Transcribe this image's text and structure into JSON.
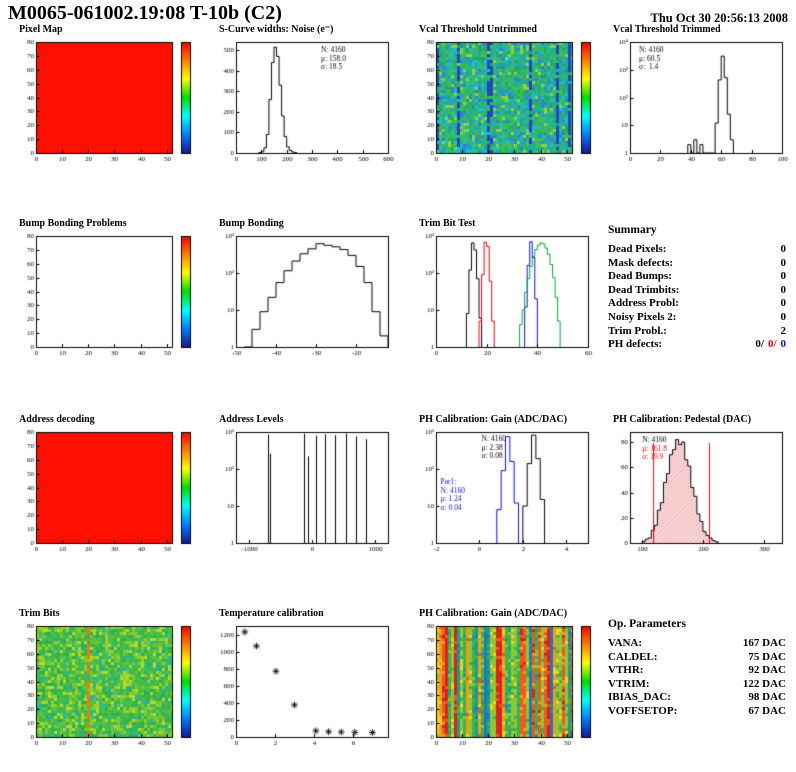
{
  "header": {
    "title": "M0065-061002.19:08 T-10b (C2)",
    "datetime": "Thu Oct 30 20:56:13 2008"
  },
  "colorbar_colors": [
    "#ff0000",
    "#ff8000",
    "#ffff00",
    "#00dc00",
    "#00ffff",
    "#0080ff",
    "#181890"
  ],
  "chart_data": [
    {
      "id": "pixel-map",
      "title": "Pixel Map",
      "type": "heatmap",
      "style": "solid",
      "fill_color": "#ff0f00",
      "colorbar": true,
      "x_range": [
        0,
        52
      ],
      "x_ticks": [
        0,
        10,
        20,
        30,
        40,
        50
      ],
      "y_range": [
        0,
        80
      ],
      "y_ticks": [
        0,
        10,
        20,
        30,
        40,
        50,
        60,
        70,
        80
      ]
    },
    {
      "id": "scurve-noise",
      "title": "S-Curve widths: Noise (e⁻)",
      "type": "hist",
      "y_type": "lin",
      "x_range": [
        0,
        600
      ],
      "x_ticks": [
        0,
        100,
        200,
        300,
        400,
        500,
        600
      ],
      "y_range": [
        0,
        540
      ],
      "y_ticks": [
        0,
        100,
        200,
        300,
        400,
        500
      ],
      "series": [
        {
          "color": "#000000",
          "x0": 90,
          "bin_width": 10,
          "counts": [
            2,
            6,
            25,
            90,
            260,
            440,
            515,
            470,
            330,
            180,
            80,
            30,
            12,
            5,
            2
          ]
        }
      ],
      "stats": [
        {
          "x": 0.56,
          "y": 0.04,
          "lines": [
            {
              "text": "N: 4160",
              "color": "#000000"
            },
            {
              "text": "μ: 158.0",
              "color": "#000000"
            },
            {
              "text": "σ: 18.5",
              "color": "#000000"
            }
          ]
        }
      ]
    },
    {
      "id": "vcal-threshold-untrimmed",
      "title": "Vcal Threshold Untrimmed",
      "type": "heatmap",
      "style": "noise",
      "seed": 7,
      "streak_prob": 0.09,
      "streak_color": "#2048c0",
      "colorbar": true,
      "palette": [
        "#2fb463",
        "#29ad71",
        "#1fae8e",
        "#36bd55",
        "#20b4a6",
        "#27a0c8",
        "#3fc04c",
        "#2b86d0",
        "#8ed042",
        "#1bbdd6",
        "#27ab5c",
        "#33b878"
      ],
      "x_range": [
        0,
        52
      ],
      "x_ticks": [
        0,
        10,
        20,
        30,
        40,
        50
      ],
      "y_range": [
        0,
        80
      ],
      "y_ticks": [
        0,
        10,
        20,
        30,
        40,
        50,
        60,
        70,
        80
      ]
    },
    {
      "id": "vcal-threshold-trimmed",
      "title": "Vcal Threshold Trimmed",
      "type": "hist",
      "y_type": "log",
      "y_decades": 4,
      "y_labels": [
        "1",
        "10",
        "10²",
        "10³",
        "10⁴"
      ],
      "x_range": [
        0,
        100
      ],
      "x_ticks": [
        0,
        20,
        40,
        60,
        80,
        100
      ],
      "series": [
        {
          "color": "#000000",
          "x0": 38,
          "bin_width": 2,
          "counts": [
            2,
            0,
            3,
            0,
            2,
            0,
            0,
            0,
            0,
            12,
            430,
            3100,
            520,
            25,
            3
          ]
        }
      ],
      "stats": [
        {
          "x": 0.06,
          "y": 0.04,
          "lines": [
            {
              "text": "N: 4160",
              "color": "#000000"
            },
            {
              "text": "μ: 60.5",
              "color": "#000000"
            },
            {
              "text": "σ:  1.4",
              "color": "#000000"
            }
          ]
        }
      ]
    },
    {
      "id": "bump-bonding-problems",
      "title": "Bump Bonding Problems",
      "type": "heatmap",
      "style": "empty",
      "colorbar": true,
      "x_range": [
        0,
        52
      ],
      "x_ticks": [
        0,
        10,
        20,
        30,
        40,
        50
      ],
      "y_range": [
        0,
        80
      ],
      "y_ticks": [
        0,
        10,
        20,
        30,
        40,
        50,
        60,
        70,
        80
      ]
    },
    {
      "id": "bump-bonding",
      "title": "Bump Bonding",
      "type": "hist",
      "y_type": "log",
      "y_decades": 3,
      "y_labels": [
        "1",
        "10",
        "10²",
        "10³"
      ],
      "x_range": [
        -50,
        -12
      ],
      "x_ticks": [
        -50,
        -40,
        -30,
        -20
      ],
      "series": [
        {
          "color": "#000000",
          "x0": -48,
          "bin_width": 2,
          "counts": [
            1,
            3,
            9,
            22,
            55,
            115,
            210,
            330,
            450,
            620,
            560,
            510,
            430,
            300,
            150,
            55,
            9,
            2
          ]
        }
      ]
    },
    {
      "id": "trim-bit-test",
      "title": "Trim Bit Test",
      "type": "hist",
      "y_type": "log",
      "y_decades": 3,
      "y_labels": [
        "1",
        "10",
        "10²",
        "10³"
      ],
      "x_range": [
        0,
        60
      ],
      "x_ticks": [
        0,
        20,
        40,
        60
      ],
      "series": [
        {
          "color": "#000000",
          "x0": 12,
          "bin_width": 1,
          "counts": [
            8,
            120,
            650,
            420,
            70,
            6
          ]
        },
        {
          "color": "#e8000d",
          "x0": 17,
          "bin_width": 1,
          "counts": [
            5,
            90,
            680,
            520,
            60,
            5
          ]
        },
        {
          "color": "#1010d8",
          "x0": 35,
          "bin_width": 1,
          "counts": [
            12,
            160,
            700,
            260,
            20
          ]
        },
        {
          "color": "#00a838",
          "x0": 33,
          "bin_width": 1,
          "counts": [
            4,
            10,
            30,
            70,
            150,
            280,
            430,
            560,
            640,
            610,
            470,
            320,
            170,
            75,
            22,
            5
          ]
        }
      ]
    },
    {
      "id": "address-decoding",
      "title": "Address decoding",
      "type": "heatmap",
      "style": "solid",
      "fill_color": "#ff0f00",
      "colorbar": true,
      "x_range": [
        0,
        52
      ],
      "x_ticks": [
        0,
        10,
        20,
        30,
        40,
        50
      ],
      "y_range": [
        0,
        80
      ],
      "y_ticks": [
        0,
        10,
        20,
        30,
        40,
        50,
        60,
        70,
        80
      ]
    },
    {
      "id": "address-levels",
      "title": "Address Levels",
      "type": "spikes",
      "y_type": "log",
      "y_decades": 3,
      "y_labels": [
        "1",
        "10",
        "10²",
        "10³"
      ],
      "x_range": [
        -1200,
        1200
      ],
      "x_ticks": [
        -1000,
        0,
        1000
      ],
      "spikes": [
        [
          -700,
          850
        ],
        [
          -660,
          260
        ],
        [
          -120,
          900
        ],
        [
          -70,
          220
        ],
        [
          60,
          800
        ],
        [
          210,
          870
        ],
        [
          370,
          820
        ],
        [
          530,
          900
        ],
        [
          690,
          760
        ],
        [
          850,
          640
        ]
      ]
    },
    {
      "id": "ph-calibration-gain-hist",
      "title": "PH Calibration: Gain (ADC/DAC)",
      "type": "hist",
      "y_type": "log",
      "y_decades": 3,
      "y_labels": [
        "1",
        "10",
        "10²",
        "10³"
      ],
      "x_range": [
        -2,
        5
      ],
      "x_ticks": [
        -2,
        0,
        2,
        4
      ],
      "series": [
        {
          "color": "#1010d8",
          "x0": 0.8,
          "bin_width": 0.2,
          "counts": [
            8,
            90,
            750,
            160,
            12
          ]
        },
        {
          "color": "#000000",
          "x0": 2.0,
          "bin_width": 0.2,
          "counts": [
            10,
            140,
            820,
            190,
            15
          ]
        }
      ],
      "stats": [
        {
          "x": 0.3,
          "y": 0.03,
          "lines": [
            {
              "text": "N: 4160",
              "color": "#000000"
            },
            {
              "text": "μ: 2.38",
              "color": "#000000"
            },
            {
              "text": "σ: 0.08",
              "color": "#000000"
            }
          ]
        },
        {
          "x": 0.03,
          "y": 0.42,
          "lines": [
            {
              "text": "Par1:",
              "color": "#1010d8"
            },
            {
              "text": "N: 4160",
              "color": "#1010d8"
            },
            {
              "text": "μ: 1.24",
              "color": "#1010d8"
            },
            {
              "text": "σ: 0.04",
              "color": "#1010d8"
            }
          ]
        }
      ]
    },
    {
      "id": "ph-calibration-pedestal",
      "title": "PH Calibration: Pedestal (DAC)",
      "type": "hist",
      "y_type": "lin",
      "x_range": [
        80,
        330
      ],
      "x_ticks": [
        100,
        200,
        300
      ],
      "y_range": [
        0,
        88
      ],
      "y_ticks": [
        0,
        20,
        40,
        60,
        80
      ],
      "series": [
        {
          "color": "#000000",
          "fill": "hatch-red",
          "x0": 100,
          "bin_width": 5,
          "counts": [
            1,
            3,
            4,
            10,
            14,
            26,
            32,
            48,
            55,
            70,
            74,
            82,
            78,
            80,
            66,
            61,
            44,
            37,
            23,
            17,
            9,
            6,
            4,
            2,
            1
          ]
        }
      ],
      "cut_lines": {
        "color": "#e8000d",
        "x": [
          118,
          210
        ]
      },
      "stats": [
        {
          "x": 0.08,
          "y": 0.04,
          "lines": [
            {
              "text": "N: 4160",
              "color": "#000000"
            },
            {
              "text": "μ: 161.8",
              "color": "#e8000d"
            },
            {
              "text": "σ: 19.9",
              "color": "#e8000d"
            }
          ]
        }
      ]
    },
    {
      "id": "trim-bits-map",
      "title": "Trim Bits",
      "type": "heatmap",
      "style": "noise",
      "seed": 21,
      "streak_prob": 0.04,
      "streak_color": "#e87818",
      "colorbar": true,
      "palette": [
        "#3cb44a",
        "#49be3e",
        "#62c437",
        "#7cc832",
        "#95cf2c",
        "#34b85c",
        "#2cae53",
        "#b4d926",
        "#44c04a",
        "#28b4a0"
      ],
      "x_range": [
        0,
        52
      ],
      "x_ticks": [
        0,
        10,
        20,
        30,
        40,
        50
      ],
      "y_range": [
        0,
        80
      ],
      "y_ticks": [
        0,
        10,
        20,
        30,
        40,
        50,
        60,
        70,
        80
      ]
    },
    {
      "id": "temperature-calibration",
      "title": "Temperature calibration",
      "type": "scatter",
      "marker": "asterisk",
      "color": "#000000",
      "x_range": [
        0,
        7.8
      ],
      "x_ticks": [
        0,
        2,
        4,
        6
      ],
      "y_range": [
        0,
        1300
      ],
      "y_ticks": [
        0,
        200,
        400,
        600,
        800,
        1000,
        1200
      ],
      "points": [
        [
          0.45,
          1230
        ],
        [
          1.05,
          1065
        ],
        [
          2.05,
          770
        ],
        [
          3.0,
          375
        ],
        [
          4.1,
          72
        ],
        [
          4.75,
          62
        ],
        [
          5.4,
          58
        ],
        [
          6.1,
          55
        ],
        [
          7.0,
          52
        ]
      ]
    },
    {
      "id": "ph-calibration-gain-map",
      "title": "PH Calibration: Gain (ADC/DAC)",
      "type": "heatmap",
      "style": "columns",
      "seed": 33,
      "colorbar": true,
      "palette": [
        "#d8241c",
        "#ee5a20",
        "#f29b1d",
        "#f7d11e",
        "#8cc63c",
        "#3cb44a",
        "#16a08c",
        "#2574bc"
      ],
      "weights": [
        4,
        3,
        2,
        1,
        3,
        3,
        1,
        1
      ],
      "x_range": [
        0,
        52
      ],
      "x_ticks": [
        0,
        10,
        20,
        30,
        40,
        50
      ],
      "y_range": [
        0,
        80
      ],
      "y_ticks": [
        0,
        10,
        20,
        30,
        40,
        50,
        60,
        70,
        80
      ]
    }
  ],
  "summary_panel": {
    "title": "Summary",
    "rows": [
      {
        "label": "Dead Pixels:",
        "value": "0"
      },
      {
        "label": "Mask defects:",
        "value": "0"
      },
      {
        "label": "Dead Bumps:",
        "value": "0"
      },
      {
        "label": "Dead Trimbits:",
        "value": "0"
      },
      {
        "label": "Address Probl:",
        "value": "0"
      },
      {
        "label": "Noisy Pixels 2:",
        "value": "0"
      },
      {
        "label": "Trim Probl.:",
        "value": "2"
      }
    ],
    "ph_defects": {
      "label": "PH defects:",
      "v1": "0/",
      "v2": "0/",
      "v3": "0"
    }
  },
  "op_parameters": {
    "title": "Op. Parameters",
    "rows": [
      {
        "label": "VANA:",
        "value": "167 DAC"
      },
      {
        "label": "CALDEL:",
        "value": "75 DAC"
      },
      {
        "label": "VTHR:",
        "value": "92 DAC"
      },
      {
        "label": "VTRIM:",
        "value": "122 DAC"
      },
      {
        "label": "IBIAS_DAC:",
        "value": "98 DAC"
      },
      {
        "label": "VOFFSETOP:",
        "value": "67 DAC"
      }
    ]
  }
}
